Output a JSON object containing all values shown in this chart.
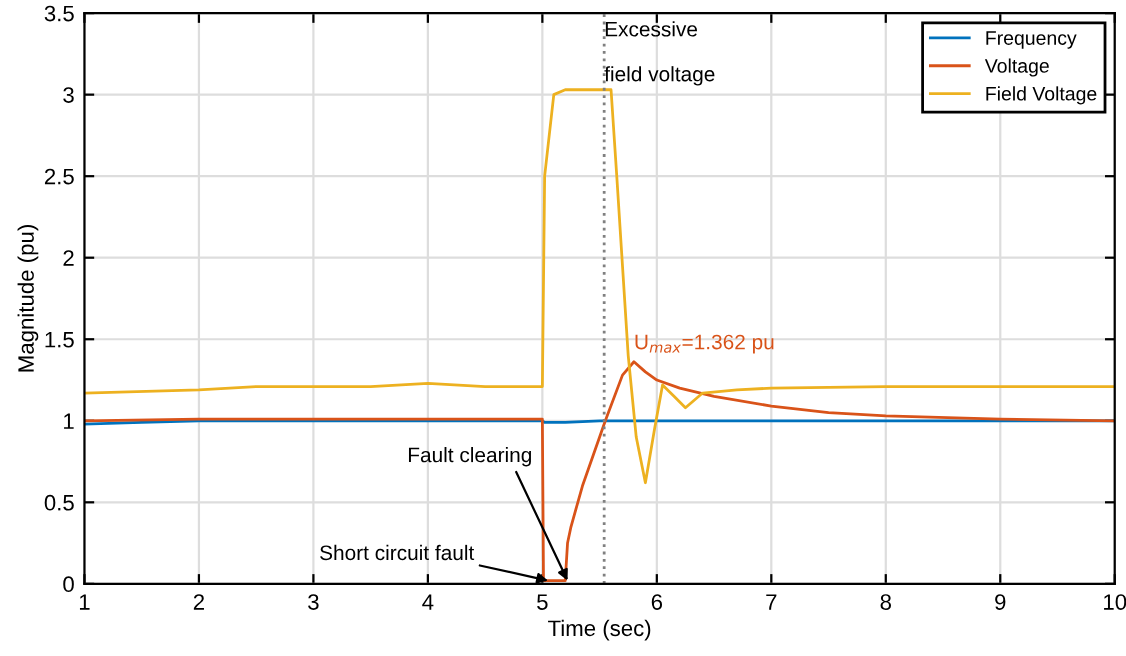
{
  "chart_data": {
    "type": "line",
    "xlabel": "Time (sec)",
    "ylabel": "Magnitude (pu)",
    "xlim": [
      1,
      10
    ],
    "ylim": [
      0,
      3.5
    ],
    "xticks": [
      1,
      2,
      3,
      4,
      5,
      6,
      7,
      8,
      9,
      10
    ],
    "yticks": [
      0,
      0.5,
      1,
      1.5,
      2,
      2.5,
      3,
      3.5
    ],
    "grid": true,
    "legend": "top right",
    "marker": "none",
    "line_style": "solid",
    "series": [
      {
        "name": "Frequency",
        "color": "#0072bd",
        "x": [
          1,
          1.5,
          2,
          3,
          4,
          5,
          5.02,
          5.2,
          5.5,
          6,
          7,
          8,
          9,
          10
        ],
        "values": [
          0.98,
          0.99,
          1.0,
          1.0,
          1.0,
          1.0,
          0.99,
          0.99,
          1.0,
          1.0,
          1.0,
          1.0,
          1.0,
          1.0
        ]
      },
      {
        "name": "Voltage",
        "color": "#d95319",
        "x": [
          1,
          2,
          3,
          4,
          5,
          5.01,
          5.1,
          5.2,
          5.22,
          5.25,
          5.35,
          5.55,
          5.7,
          5.8,
          5.9,
          6.0,
          6.2,
          6.5,
          7,
          7.5,
          8,
          9,
          10
        ],
        "values": [
          1.0,
          1.01,
          1.01,
          1.01,
          1.01,
          0.02,
          0.02,
          0.02,
          0.25,
          0.35,
          0.6,
          1.0,
          1.28,
          1.362,
          1.3,
          1.25,
          1.2,
          1.15,
          1.09,
          1.05,
          1.03,
          1.01,
          1.0
        ]
      },
      {
        "name": "Field Voltage",
        "color": "#edb120",
        "x": [
          1,
          2,
          2.5,
          3.5,
          4,
          4.5,
          5,
          5.02,
          5.1,
          5.2,
          5.6,
          5.65,
          5.75,
          5.82,
          5.9,
          5.98,
          6.05,
          6.15,
          6.25,
          6.4,
          6.7,
          7,
          8,
          9,
          10
        ],
        "values": [
          1.17,
          1.19,
          1.21,
          1.21,
          1.23,
          1.21,
          1.21,
          2.5,
          3.0,
          3.03,
          3.03,
          2.5,
          1.4,
          0.9,
          0.62,
          0.95,
          1.22,
          1.15,
          1.08,
          1.17,
          1.19,
          1.2,
          1.21,
          1.21,
          1.21
        ]
      }
    ],
    "ref_lines": [
      {
        "axis": "x",
        "value": 5.54,
        "label": "Excessive\n\nfield voltage",
        "color": "#808080",
        "line_style": "dotted"
      }
    ],
    "annotations": [
      {
        "text": "Short circuit fault",
        "x": 5.05,
        "y": 0.02
      },
      {
        "text": "Fault clearing",
        "x": 5.22,
        "y": 0.02
      },
      {
        "text": "U$_{max}$=1.362 pu",
        "x": 5.8,
        "y": 1.362
      }
    ]
  }
}
